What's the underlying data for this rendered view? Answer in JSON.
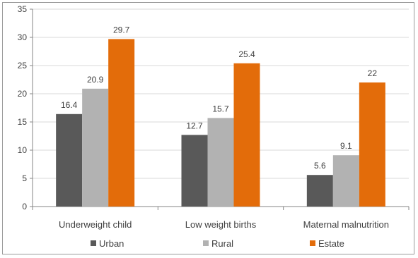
{
  "chart_data": {
    "type": "bar",
    "categories": [
      "Underweight child",
      "Low weight births",
      "Maternal malnutrition"
    ],
    "series": [
      {
        "name": "Urban",
        "values": [
          16.4,
          12.7,
          5.6
        ],
        "labels": [
          "16.4",
          "12.7",
          "5.6"
        ],
        "color": "#595959"
      },
      {
        "name": "Rural",
        "values": [
          20.9,
          15.7,
          9.1
        ],
        "labels": [
          "20.9",
          "15.7",
          "9.1"
        ],
        "color": "#b2b2b2"
      },
      {
        "name": "Estate",
        "values": [
          29.7,
          25.4,
          22
        ],
        "labels": [
          "29.7",
          "25.4",
          "22"
        ],
        "color": "#e36c0a"
      }
    ],
    "ylim": [
      0,
      35
    ],
    "yticks": [
      0,
      5,
      10,
      15,
      20,
      25,
      30,
      35
    ],
    "grid": true,
    "legend": "bottom",
    "colors": {
      "gridline": "#d9d9d9",
      "axis": "#868686",
      "text": "#404040"
    }
  }
}
